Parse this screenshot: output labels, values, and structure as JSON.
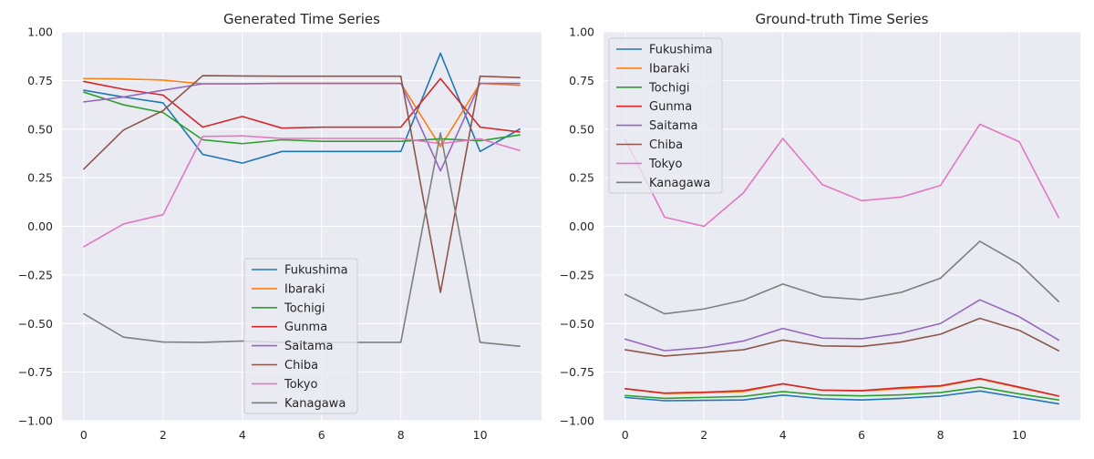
{
  "chart_data": [
    {
      "type": "line",
      "title": "Generated Time Series",
      "xlabel": "",
      "ylabel": "",
      "x": [
        0,
        1,
        2,
        3,
        4,
        5,
        6,
        7,
        8,
        9,
        10,
        11
      ],
      "xticks": [
        0,
        2,
        4,
        6,
        8,
        10
      ],
      "ylim": [
        -1.0,
        1.0
      ],
      "xlim": [
        -0.55,
        11.55
      ],
      "yticks": [
        -1.0,
        -0.75,
        -0.5,
        -0.25,
        0.0,
        0.25,
        0.5,
        0.75,
        1.0
      ],
      "ytick_labels": [
        "−1.00",
        "−0.75",
        "−0.50",
        "−0.25",
        "0.00",
        "0.25",
        "0.50",
        "0.75",
        "1.00"
      ],
      "grid": true,
      "legend_position": "lower-center",
      "series": [
        {
          "name": "Fukushima",
          "color": "#1f77b4",
          "values": [
            0.7,
            0.665,
            0.635,
            0.37,
            0.325,
            0.385,
            0.385,
            0.385,
            0.385,
            0.89,
            0.385,
            0.5
          ]
        },
        {
          "name": "Ibaraki",
          "color": "#ff7f0e",
          "values": [
            0.76,
            0.758,
            0.752,
            0.733,
            0.733,
            0.735,
            0.735,
            0.735,
            0.735,
            0.41,
            0.735,
            0.725
          ]
        },
        {
          "name": "Tochigi",
          "color": "#2ca02c",
          "values": [
            0.69,
            0.625,
            0.585,
            0.445,
            0.425,
            0.445,
            0.437,
            0.437,
            0.437,
            0.45,
            0.44,
            0.47
          ]
        },
        {
          "name": "Gunma",
          "color": "#d62728",
          "values": [
            0.745,
            0.705,
            0.675,
            0.51,
            0.565,
            0.505,
            0.51,
            0.51,
            0.51,
            0.76,
            0.51,
            0.485
          ]
        },
        {
          "name": "Saitama",
          "color": "#9467bd",
          "values": [
            0.64,
            0.665,
            0.7,
            0.733,
            0.733,
            0.735,
            0.735,
            0.735,
            0.735,
            0.285,
            0.735,
            0.735
          ]
        },
        {
          "name": "Chiba",
          "color": "#8c564b",
          "values": [
            0.295,
            0.495,
            0.595,
            0.775,
            0.773,
            0.772,
            0.772,
            0.772,
            0.772,
            -0.34,
            0.772,
            0.765
          ]
        },
        {
          "name": "Tokyo",
          "color": "#e377c2",
          "values": [
            -0.105,
            0.012,
            0.06,
            0.462,
            0.465,
            0.452,
            0.452,
            0.452,
            0.452,
            0.425,
            0.45,
            0.39
          ]
        },
        {
          "name": "Kanagawa",
          "color": "#7f7f7f",
          "values": [
            -0.45,
            -0.57,
            -0.595,
            -0.597,
            -0.59,
            -0.597,
            -0.597,
            -0.597,
            -0.597,
            0.48,
            -0.597,
            -0.617
          ]
        }
      ]
    },
    {
      "type": "line",
      "title": "Ground-truth Time Series",
      "xlabel": "",
      "ylabel": "",
      "x": [
        0,
        1,
        2,
        3,
        4,
        5,
        6,
        7,
        8,
        9,
        10,
        11
      ],
      "xticks": [
        0,
        2,
        4,
        6,
        8,
        10
      ],
      "ylim": [
        -1.0,
        1.0
      ],
      "xlim": [
        -0.55,
        11.55
      ],
      "yticks": [
        -1.0,
        -0.75,
        -0.5,
        -0.25,
        0.0,
        0.25,
        0.5,
        0.75,
        1.0
      ],
      "ytick_labels": [
        "−1.00",
        "−0.75",
        "−0.50",
        "−0.25",
        "0.00",
        "0.25",
        "0.50",
        "0.75",
        "1.00"
      ],
      "grid": true,
      "legend_position": "upper-left",
      "series": [
        {
          "name": "Fukushima",
          "color": "#1f77b4",
          "values": [
            -0.88,
            -0.897,
            -0.895,
            -0.893,
            -0.868,
            -0.887,
            -0.893,
            -0.885,
            -0.873,
            -0.847,
            -0.88,
            -0.913
          ]
        },
        {
          "name": "Ibaraki",
          "color": "#ff7f0e",
          "values": [
            -0.835,
            -0.86,
            -0.857,
            -0.85,
            -0.81,
            -0.843,
            -0.847,
            -0.835,
            -0.823,
            -0.785,
            -0.83,
            -0.873
          ]
        },
        {
          "name": "Tochigi",
          "color": "#2ca02c",
          "values": [
            -0.87,
            -0.885,
            -0.88,
            -0.875,
            -0.85,
            -0.868,
            -0.872,
            -0.867,
            -0.855,
            -0.827,
            -0.862,
            -0.893
          ]
        },
        {
          "name": "Gunma",
          "color": "#d62728",
          "values": [
            -0.835,
            -0.858,
            -0.853,
            -0.845,
            -0.81,
            -0.843,
            -0.845,
            -0.83,
            -0.82,
            -0.783,
            -0.827,
            -0.873
          ]
        },
        {
          "name": "Saitama",
          "color": "#9467bd",
          "values": [
            -0.58,
            -0.64,
            -0.623,
            -0.59,
            -0.525,
            -0.575,
            -0.578,
            -0.55,
            -0.5,
            -0.378,
            -0.465,
            -0.585
          ]
        },
        {
          "name": "Chiba",
          "color": "#8c564b",
          "values": [
            -0.635,
            -0.667,
            -0.652,
            -0.635,
            -0.585,
            -0.615,
            -0.618,
            -0.595,
            -0.555,
            -0.473,
            -0.535,
            -0.64
          ]
        },
        {
          "name": "Tokyo",
          "color": "#e377c2",
          "values": [
            0.445,
            0.047,
            0.0,
            0.172,
            0.452,
            0.215,
            0.132,
            0.15,
            0.21,
            0.525,
            0.435,
            0.045
          ]
        },
        {
          "name": "Kanagawa",
          "color": "#7f7f7f",
          "values": [
            -0.35,
            -0.45,
            -0.425,
            -0.38,
            -0.297,
            -0.362,
            -0.377,
            -0.34,
            -0.267,
            -0.077,
            -0.193,
            -0.387
          ]
        }
      ]
    }
  ]
}
